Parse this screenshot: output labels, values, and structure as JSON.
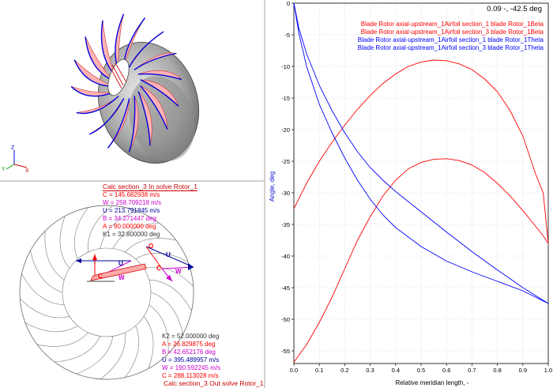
{
  "view3d": {
    "axes": {
      "x": "X",
      "y": "Y",
      "z": "Z"
    }
  },
  "velocity_in": {
    "title": "Calc section_3 In solve Rotor_1",
    "rows": [
      {
        "text": "C = 145.682938 m/s",
        "color": "#ff0000"
      },
      {
        "text": "W = 258.709218 m/s",
        "color": "#cc00cc"
      },
      {
        "text": "U = 213.791845 m/s",
        "color": "#000099"
      },
      {
        "text": "B = 34.271447 deg",
        "color": "#cc00cc"
      },
      {
        "text": "A = 90.000000 deg",
        "color": "#ff0000"
      },
      {
        "text": "K1 = 32.800000 deg",
        "color": "#333333"
      }
    ]
  },
  "velocity_out": {
    "title": "Calc section_3 Out solve Rotor_1",
    "rows": [
      {
        "text": "K2 = 52.000000 deg",
        "color": "#333333"
      },
      {
        "text": "A = 26.829875 deg",
        "color": "#ff0000"
      },
      {
        "text": "B = 42.652176 deg",
        "color": "#cc00cc"
      },
      {
        "text": "U = 395.489957 m/s",
        "color": "#000099"
      },
      {
        "text": "W = 190.592245 m/s",
        "color": "#cc00cc"
      },
      {
        "text": "C = 288.113028 m/s",
        "color": "#ff0000"
      }
    ]
  },
  "triangle_labels": {
    "u1": "U",
    "w1": "W",
    "c1": "C",
    "u2": "U",
    "w2": "W",
    "c2": "C",
    "o": "O"
  },
  "readout": "0.09 -,  -42.5 deg",
  "chart_data": {
    "type": "line",
    "xlabel": "Relative meridian length, -",
    "ylabel": "Angle, deg",
    "xlim": [
      0,
      1
    ],
    "ylim": [
      -57,
      0
    ],
    "xticks": [
      "0.0",
      "0.1",
      "0.2",
      "0.3",
      "0.4",
      "0.5",
      "0.6",
      "0.7",
      "0.8",
      "0.9",
      "1.0"
    ],
    "yticks": [
      "0",
      "-5",
      "-10",
      "-15",
      "-20",
      "-25",
      "-30",
      "-35",
      "-40",
      "-45",
      "-50",
      "-55"
    ],
    "grid": true,
    "legend_position": "top-right",
    "series": [
      {
        "name": "Blade Rotor axial-upstream_1Airfoil section_1 blade Rotor_1Beta",
        "color": "#ff0000",
        "x": [
          0,
          0.05,
          0.1,
          0.15,
          0.2,
          0.25,
          0.3,
          0.35,
          0.4,
          0.45,
          0.5,
          0.55,
          0.6,
          0.65,
          0.7,
          0.75,
          0.8,
          0.85,
          0.9,
          0.95,
          0.98,
          1.0
        ],
        "y": [
          -32.5,
          -28.5,
          -25.0,
          -22.0,
          -19.3,
          -16.8,
          -14.6,
          -12.7,
          -11.2,
          -10.0,
          -9.3,
          -9.0,
          -9.1,
          -9.6,
          -10.5,
          -12.0,
          -14.0,
          -17.0,
          -21.0,
          -27.0,
          -30.0,
          -38.0
        ]
      },
      {
        "name": "Blade Rotor axial-upstream_1Airfoil section_3 blade Rotor_1Beta",
        "color": "#ff0000",
        "x": [
          0,
          0.05,
          0.1,
          0.15,
          0.2,
          0.25,
          0.3,
          0.35,
          0.4,
          0.45,
          0.5,
          0.55,
          0.6,
          0.65,
          0.7,
          0.75,
          0.8,
          0.85,
          0.9,
          0.95,
          0.98,
          1.0
        ],
        "y": [
          -56.8,
          -54.0,
          -50.5,
          -46.5,
          -42.0,
          -37.5,
          -33.8,
          -30.5,
          -28.0,
          -26.2,
          -25.2,
          -24.7,
          -24.6,
          -24.9,
          -25.6,
          -26.8,
          -28.5,
          -30.5,
          -32.8,
          -35.3,
          -36.8,
          -38.0
        ]
      },
      {
        "name": "Blade Rotor axial-upstream_1Airfoil section_1 blade Rotor_1Theta",
        "color": "#0000ff",
        "x": [
          0,
          0.02,
          0.05,
          0.1,
          0.15,
          0.2,
          0.25,
          0.3,
          0.35,
          0.4,
          0.5,
          0.6,
          0.7,
          0.8,
          0.9,
          1.0
        ],
        "y": [
          0,
          -4.0,
          -8.0,
          -13.0,
          -17.0,
          -20.5,
          -23.5,
          -26.0,
          -28.0,
          -29.8,
          -33.0,
          -36.2,
          -39.3,
          -42.2,
          -45.0,
          -47.5
        ]
      },
      {
        "name": "Blade Rotor axial-upstream_1Airfoil section_3 blade Rotor_1Theta",
        "color": "#0000ff",
        "x": [
          0,
          0.02,
          0.05,
          0.1,
          0.15,
          0.2,
          0.25,
          0.3,
          0.35,
          0.4,
          0.5,
          0.6,
          0.7,
          0.8,
          0.9,
          1.0
        ],
        "y": [
          0,
          -4.8,
          -10.0,
          -16.0,
          -20.5,
          -24.5,
          -28.0,
          -31.0,
          -33.5,
          -35.5,
          -38.5,
          -40.8,
          -42.5,
          -44.0,
          -45.5,
          -47.5
        ]
      }
    ]
  }
}
